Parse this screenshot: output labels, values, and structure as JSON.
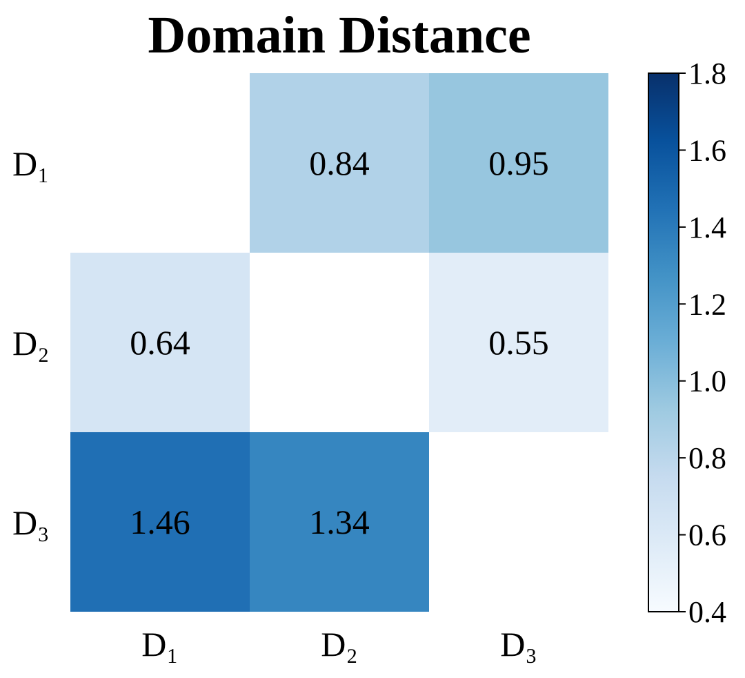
{
  "chart_data": {
    "type": "heatmap",
    "title": "Domain Distance",
    "xlabel": "",
    "ylabel": "",
    "x_categories": [
      "D₁",
      "D₂",
      "D₃"
    ],
    "y_categories": [
      "D₁",
      "D₂",
      "D₃"
    ],
    "values": [
      [
        null,
        0.84,
        0.95
      ],
      [
        0.64,
        null,
        0.55
      ],
      [
        1.46,
        1.34,
        null
      ]
    ],
    "value_labels": [
      [
        "",
        "0.84",
        "0.95"
      ],
      [
        "0.64",
        "",
        "0.55"
      ],
      [
        "1.46",
        "1.34",
        ""
      ]
    ],
    "colormap": "Blues",
    "colorbar": {
      "range": [
        0.4,
        1.8
      ],
      "ticks": [
        "0.4",
        "0.6",
        "0.8",
        "1.0",
        "1.2",
        "1.4",
        "1.6",
        "1.8"
      ],
      "position": "right"
    },
    "grid": false
  }
}
